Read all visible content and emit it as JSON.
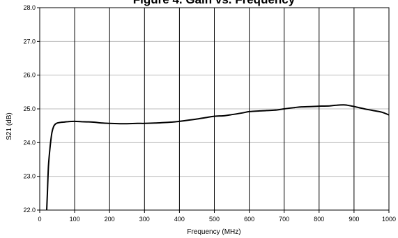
{
  "chart_data": {
    "type": "line",
    "title": "Figure 4. Gain vs. Frequency",
    "xlabel": "Frequency (MHz)",
    "ylabel": "S21 (dB)",
    "xlim": [
      0,
      1000
    ],
    "ylim": [
      22.0,
      28.0
    ],
    "x_ticks": [
      0,
      100,
      200,
      300,
      400,
      500,
      600,
      700,
      800,
      900,
      1000
    ],
    "y_ticks": [
      22.0,
      23.0,
      24.0,
      25.0,
      26.0,
      27.0,
      28.0
    ],
    "x_tick_labels": [
      "0",
      "100",
      "200",
      "300",
      "400",
      "500",
      "600",
      "700",
      "800",
      "900",
      "1000"
    ],
    "y_tick_labels": [
      "22.0",
      "23.0",
      "24.0",
      "25.0",
      "26.0",
      "27.0",
      "28.0"
    ],
    "grid": {
      "vertical": true,
      "horizontal": true
    },
    "legend": "none",
    "series": [
      {
        "color": "#000000",
        "x": [
          20,
          22,
          25,
          30,
          35,
          40,
          45,
          50,
          60,
          70,
          80,
          100,
          120,
          150,
          180,
          200,
          230,
          250,
          280,
          300,
          330,
          350,
          380,
          400,
          430,
          450,
          480,
          500,
          530,
          550,
          580,
          600,
          630,
          650,
          680,
          700,
          730,
          750,
          780,
          800,
          830,
          850,
          870,
          880,
          900,
          930,
          950,
          980,
          1000
        ],
        "y": [
          22.0,
          22.5,
          23.3,
          23.9,
          24.3,
          24.48,
          24.55,
          24.58,
          24.6,
          24.61,
          24.62,
          24.63,
          24.62,
          24.61,
          24.58,
          24.57,
          24.56,
          24.56,
          24.57,
          24.57,
          24.58,
          24.59,
          24.61,
          24.63,
          24.67,
          24.7,
          24.75,
          24.78,
          24.8,
          24.83,
          24.88,
          24.92,
          24.94,
          24.95,
          24.97,
          25.0,
          25.04,
          25.06,
          25.07,
          25.08,
          25.09,
          25.11,
          25.12,
          25.11,
          25.07,
          25.0,
          24.96,
          24.9,
          24.82
        ]
      }
    ]
  }
}
